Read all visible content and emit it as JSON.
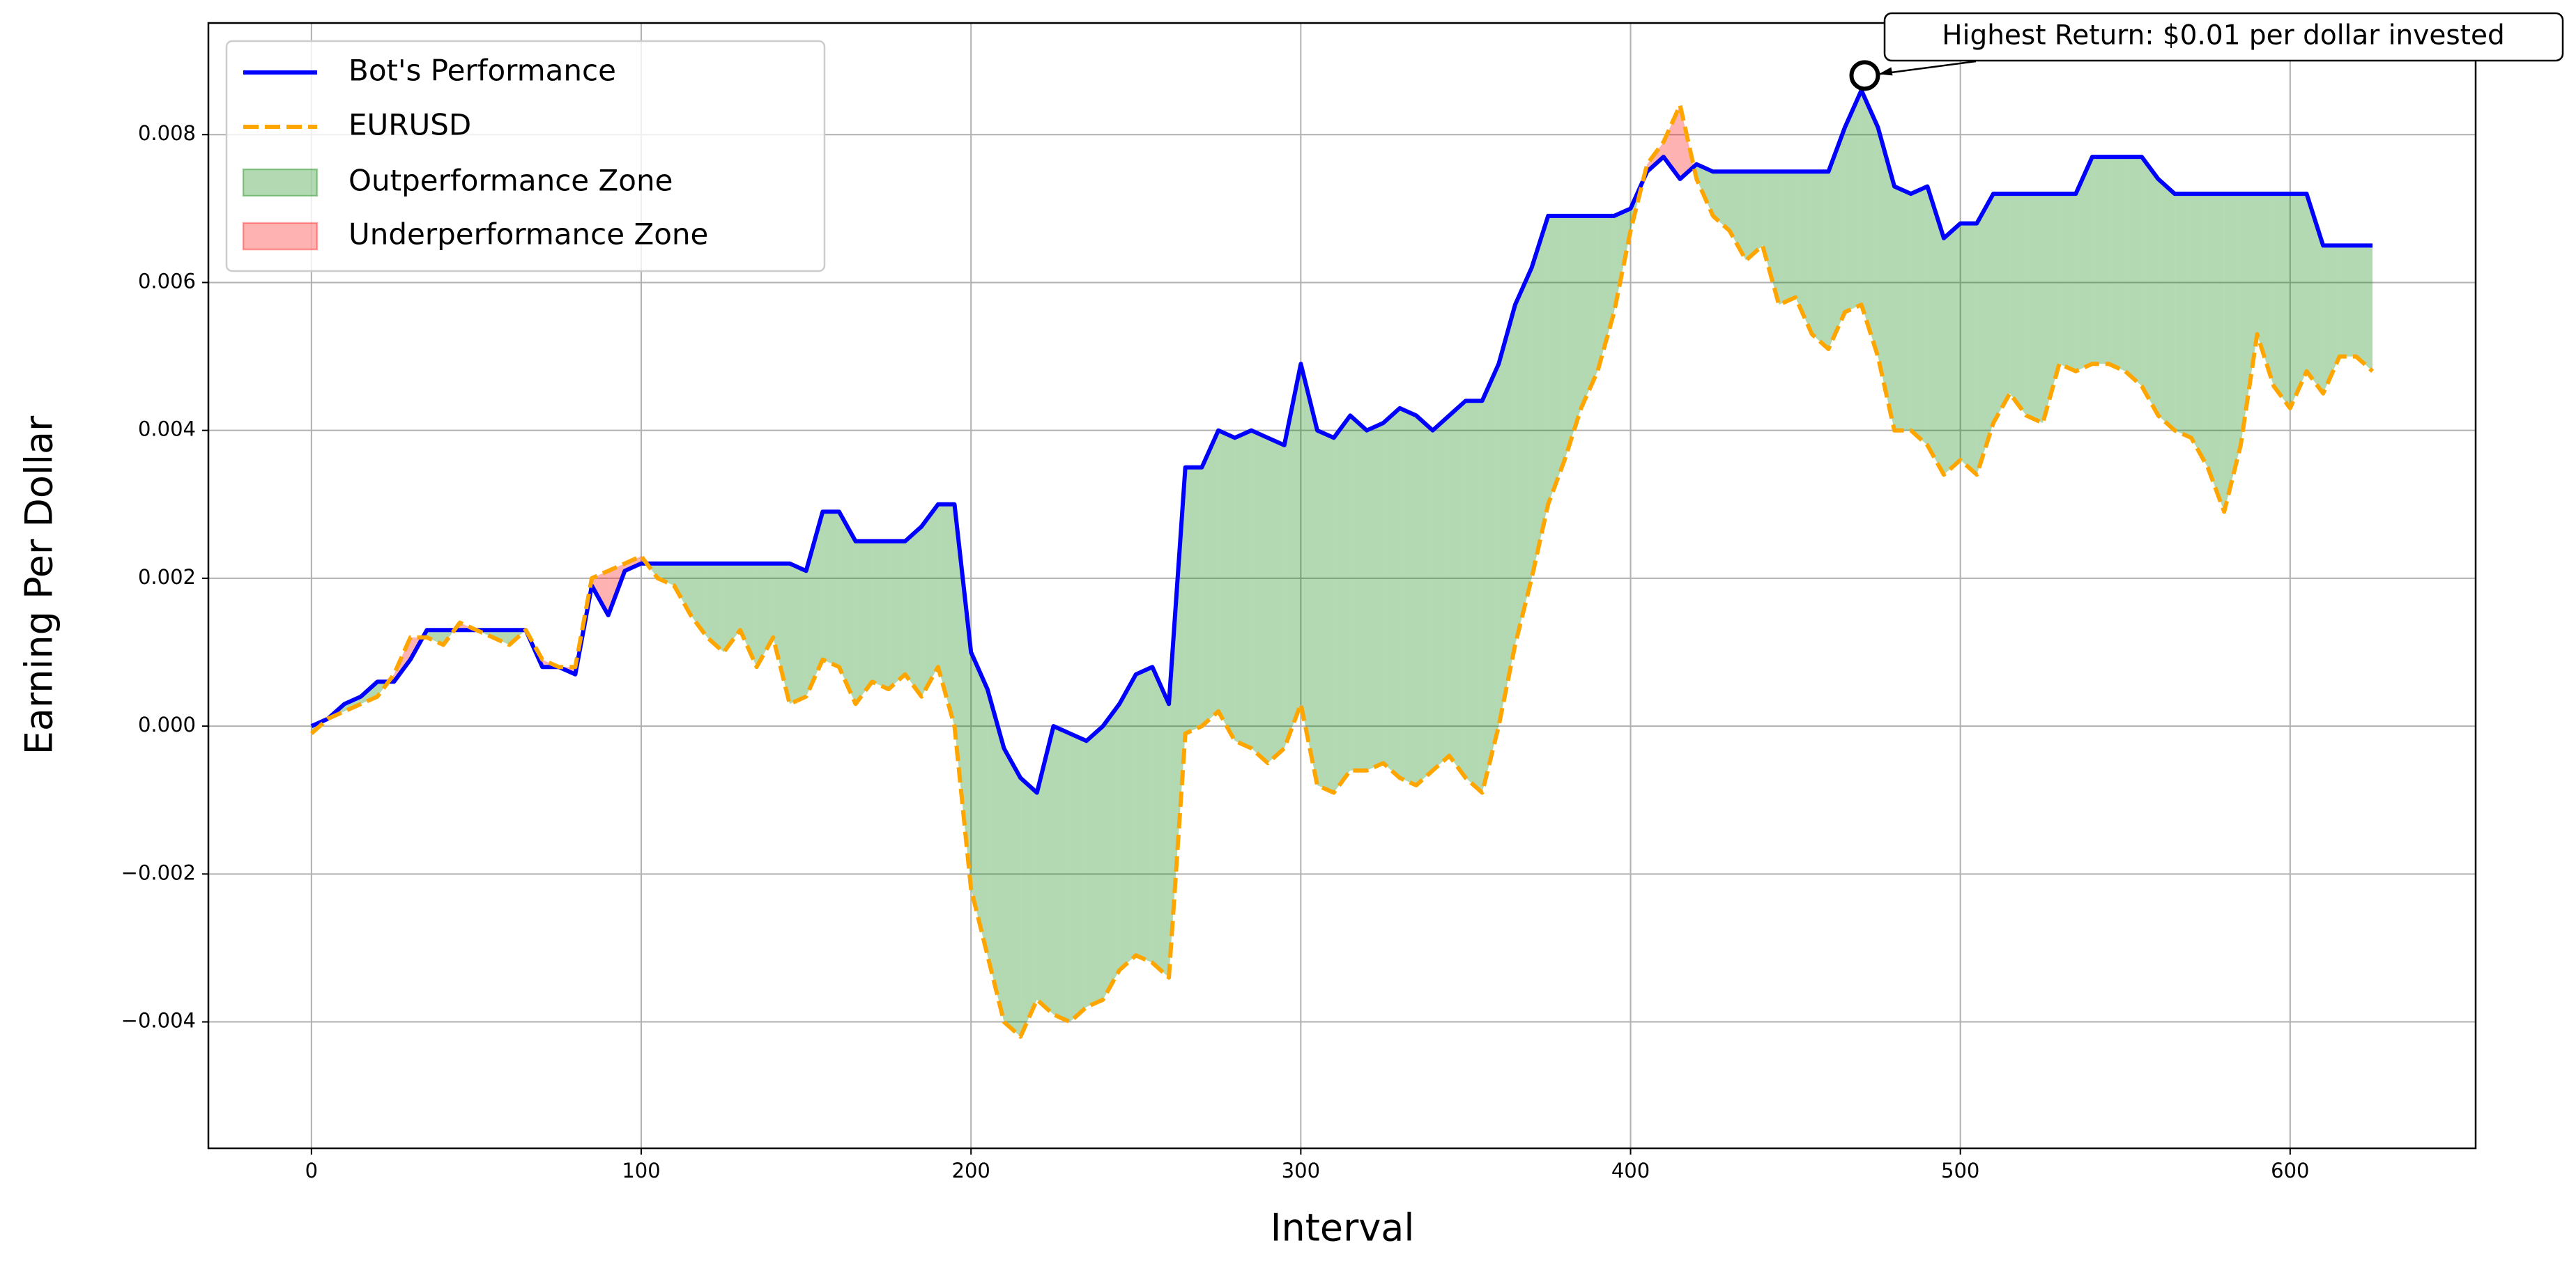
{
  "chart_data": {
    "type": "line",
    "xlabel": "Interval",
    "ylabel": "Earning Per Dollar",
    "x": [
      0,
      5,
      10,
      15,
      20,
      25,
      30,
      35,
      40,
      45,
      50,
      55,
      60,
      65,
      70,
      75,
      80,
      85,
      90,
      95,
      100,
      105,
      110,
      115,
      120,
      125,
      130,
      135,
      140,
      145,
      150,
      155,
      160,
      165,
      170,
      175,
      180,
      185,
      190,
      195,
      200,
      205,
      210,
      215,
      220,
      225,
      230,
      235,
      240,
      245,
      250,
      255,
      260,
      265,
      270,
      275,
      280,
      285,
      290,
      295,
      300,
      305,
      310,
      315,
      320,
      325,
      330,
      335,
      340,
      345,
      350,
      355,
      360,
      365,
      370,
      375,
      380,
      385,
      390,
      395,
      400,
      405,
      410,
      415,
      420,
      425,
      430,
      435,
      440,
      445,
      450,
      455,
      460,
      465,
      470,
      475,
      480,
      485,
      490,
      495,
      500,
      505,
      510,
      515,
      520,
      525,
      530,
      535,
      540,
      545,
      550,
      555,
      560,
      565,
      570,
      575,
      580,
      585,
      590,
      595,
      600,
      605,
      610,
      615,
      620,
      625
    ],
    "series": [
      {
        "name": "Bot's Performance",
        "color": "#0000ff",
        "style": "solid",
        "values": [
          0,
          0.0001,
          0.0003,
          0.0004,
          0.0006,
          0.0006,
          0.0009,
          0.0013,
          0.0013,
          0.0013,
          0.0013,
          0.0013,
          0.0013,
          0.0013,
          0.0008,
          0.0008,
          0.0007,
          0.0019,
          0.0015,
          0.0021,
          0.0022,
          0.0022,
          0.0022,
          0.0022,
          0.0022,
          0.0022,
          0.0022,
          0.0022,
          0.0022,
          0.0022,
          0.0021,
          0.0029,
          0.0029,
          0.0025,
          0.0025,
          0.0025,
          0.0025,
          0.0027,
          0.003,
          0.003,
          0.001,
          0.0005,
          -0.0003,
          -0.0007,
          -0.0009,
          0,
          -0.0001,
          -0.0002,
          0,
          0.0003,
          0.0007,
          0.0008,
          0.0003,
          0.0035,
          0.0035,
          0.004,
          0.0039,
          0.004,
          0.0039,
          0.0038,
          0.0049,
          0.004,
          0.0039,
          0.0042,
          0.004,
          0.0041,
          0.0043,
          0.0042,
          0.004,
          0.0042,
          0.0044,
          0.0044,
          0.0049,
          0.0057,
          0.0062,
          0.0069,
          0.0069,
          0.0069,
          0.0069,
          0.0069,
          0.007,
          0.0075,
          0.0077,
          0.0074,
          0.0076,
          0.0075,
          0.0075,
          0.0075,
          0.0075,
          0.0075,
          0.0075,
          0.0075,
          0.0075,
          0.0081,
          0.0086,
          0.0081,
          0.0073,
          0.0072,
          0.0073,
          0.0066,
          0.0068,
          0.0068,
          0.0072,
          0.0072,
          0.0072,
          0.0072,
          0.0072,
          0.0072,
          0.0077,
          0.0077,
          0.0077,
          0.0077,
          0.0074,
          0.0072,
          0.0072,
          0.0072,
          0.0072,
          0.0072,
          0.0072,
          0.0072,
          0.0072,
          0.0072,
          0.0065,
          0.0065,
          0.0065,
          0.0065
        ]
      },
      {
        "name": "EURUSD",
        "color": "#ffa500",
        "style": "dashed",
        "values": [
          -0.0001,
          0.0001,
          0.0002,
          0.0003,
          0.0004,
          0.0007,
          0.0012,
          0.0012,
          0.0011,
          0.0014,
          0.0013,
          0.0012,
          0.0011,
          0.0013,
          0.0009,
          0.0008,
          0.0008,
          0.002,
          0.0021,
          0.0022,
          0.0023,
          0.002,
          0.0019,
          0.0015,
          0.0012,
          0.001,
          0.0013,
          0.0008,
          0.0012,
          0.0003,
          0.0004,
          0.0009,
          0.0008,
          0.0003,
          0.0006,
          0.0005,
          0.0007,
          0.0004,
          0.0008,
          0,
          -0.0022,
          -0.0031,
          -0.004,
          -0.0042,
          -0.0037,
          -0.0039,
          -0.004,
          -0.0038,
          -0.0037,
          -0.0033,
          -0.0031,
          -0.0032,
          -0.0034,
          -0.0001,
          0,
          0.0002,
          -0.0002,
          -0.0003,
          -0.0005,
          -0.0003,
          0.0003,
          -0.0008,
          -0.0009,
          -0.0006,
          -0.0006,
          -0.0005,
          -0.0007,
          -0.0008,
          -0.0006,
          -0.0004,
          -0.0007,
          -0.0009,
          0,
          0.0011,
          0.002,
          0.003,
          0.0036,
          0.0043,
          0.0048,
          0.0056,
          0.0067,
          0.0076,
          0.0079,
          0.0084,
          0.0074,
          0.0069,
          0.0067,
          0.0063,
          0.0065,
          0.0057,
          0.0058,
          0.0053,
          0.0051,
          0.0056,
          0.0057,
          0.005,
          0.004,
          0.004,
          0.0038,
          0.0034,
          0.0036,
          0.0034,
          0.0041,
          0.0045,
          0.0042,
          0.0041,
          0.0049,
          0.0048,
          0.0049,
          0.0049,
          0.0048,
          0.0046,
          0.0042,
          0.004,
          0.0039,
          0.0035,
          0.0029,
          0.0038,
          0.0053,
          0.0046,
          0.0043,
          0.0048,
          0.0045,
          0.005,
          0.005,
          0.0048
        ]
      }
    ],
    "fills": [
      {
        "name": "Outperformance Zone",
        "color": "#008000"
      },
      {
        "name": "Underperformance Zone",
        "color": "#ff0000"
      }
    ],
    "annotation": {
      "text": "Highest Return: $0.01 per dollar invested",
      "x": 471,
      "y": 0.0088
    },
    "xlim": [
      -31.25,
      656.25
    ],
    "ylim": [
      -0.00571,
      0.00951
    ],
    "xticks": [
      0,
      100,
      200,
      300,
      400,
      500,
      600
    ],
    "yticks": [
      {
        "value": -0.004,
        "label": "−0.004"
      },
      {
        "value": -0.002,
        "label": "−0.002"
      },
      {
        "value": 0,
        "label": "0.000"
      },
      {
        "value": 0.002,
        "label": "0.002"
      },
      {
        "value": 0.004,
        "label": "0.004"
      },
      {
        "value": 0.006,
        "label": "0.006"
      },
      {
        "value": 0.008,
        "label": "0.008"
      }
    ],
    "grid": true,
    "legend": "upper left"
  }
}
